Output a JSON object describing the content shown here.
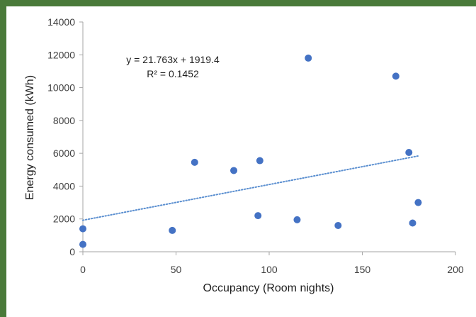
{
  "chart_data": {
    "type": "scatter",
    "xlabel": "Occupancy (Room nights)",
    "ylabel": "Energy consumed (kWh)",
    "xlim": [
      0,
      200
    ],
    "ylim": [
      0,
      14000
    ],
    "x_ticks": [
      "0",
      "50",
      "100",
      "150",
      "200"
    ],
    "y_ticks": [
      "0",
      "2000",
      "4000",
      "6000",
      "8000",
      "10000",
      "12000",
      "14000"
    ],
    "grid": false,
    "legend": "none",
    "points": [
      {
        "x": 0,
        "y": 450
      },
      {
        "x": 0,
        "y": 1400
      },
      {
        "x": 48,
        "y": 1300
      },
      {
        "x": 60,
        "y": 5450
      },
      {
        "x": 81,
        "y": 4950
      },
      {
        "x": 94,
        "y": 2200
      },
      {
        "x": 95,
        "y": 5550
      },
      {
        "x": 115,
        "y": 1950
      },
      {
        "x": 121,
        "y": 11800
      },
      {
        "x": 137,
        "y": 1600
      },
      {
        "x": 168,
        "y": 10700
      },
      {
        "x": 175,
        "y": 6050
      },
      {
        "x": 177,
        "y": 1750
      },
      {
        "x": 180,
        "y": 3000
      }
    ],
    "trendline": {
      "type": "linear",
      "slope": 21.763,
      "intercept": 1919.4,
      "x_range": [
        0,
        180
      ],
      "style": "dotted"
    },
    "equation_label": "y = 21.763x + 1919.4",
    "r2_label": "R² = 0.1452",
    "marker_color": "#4472c4",
    "trend_color": "#5b8fd0"
  }
}
